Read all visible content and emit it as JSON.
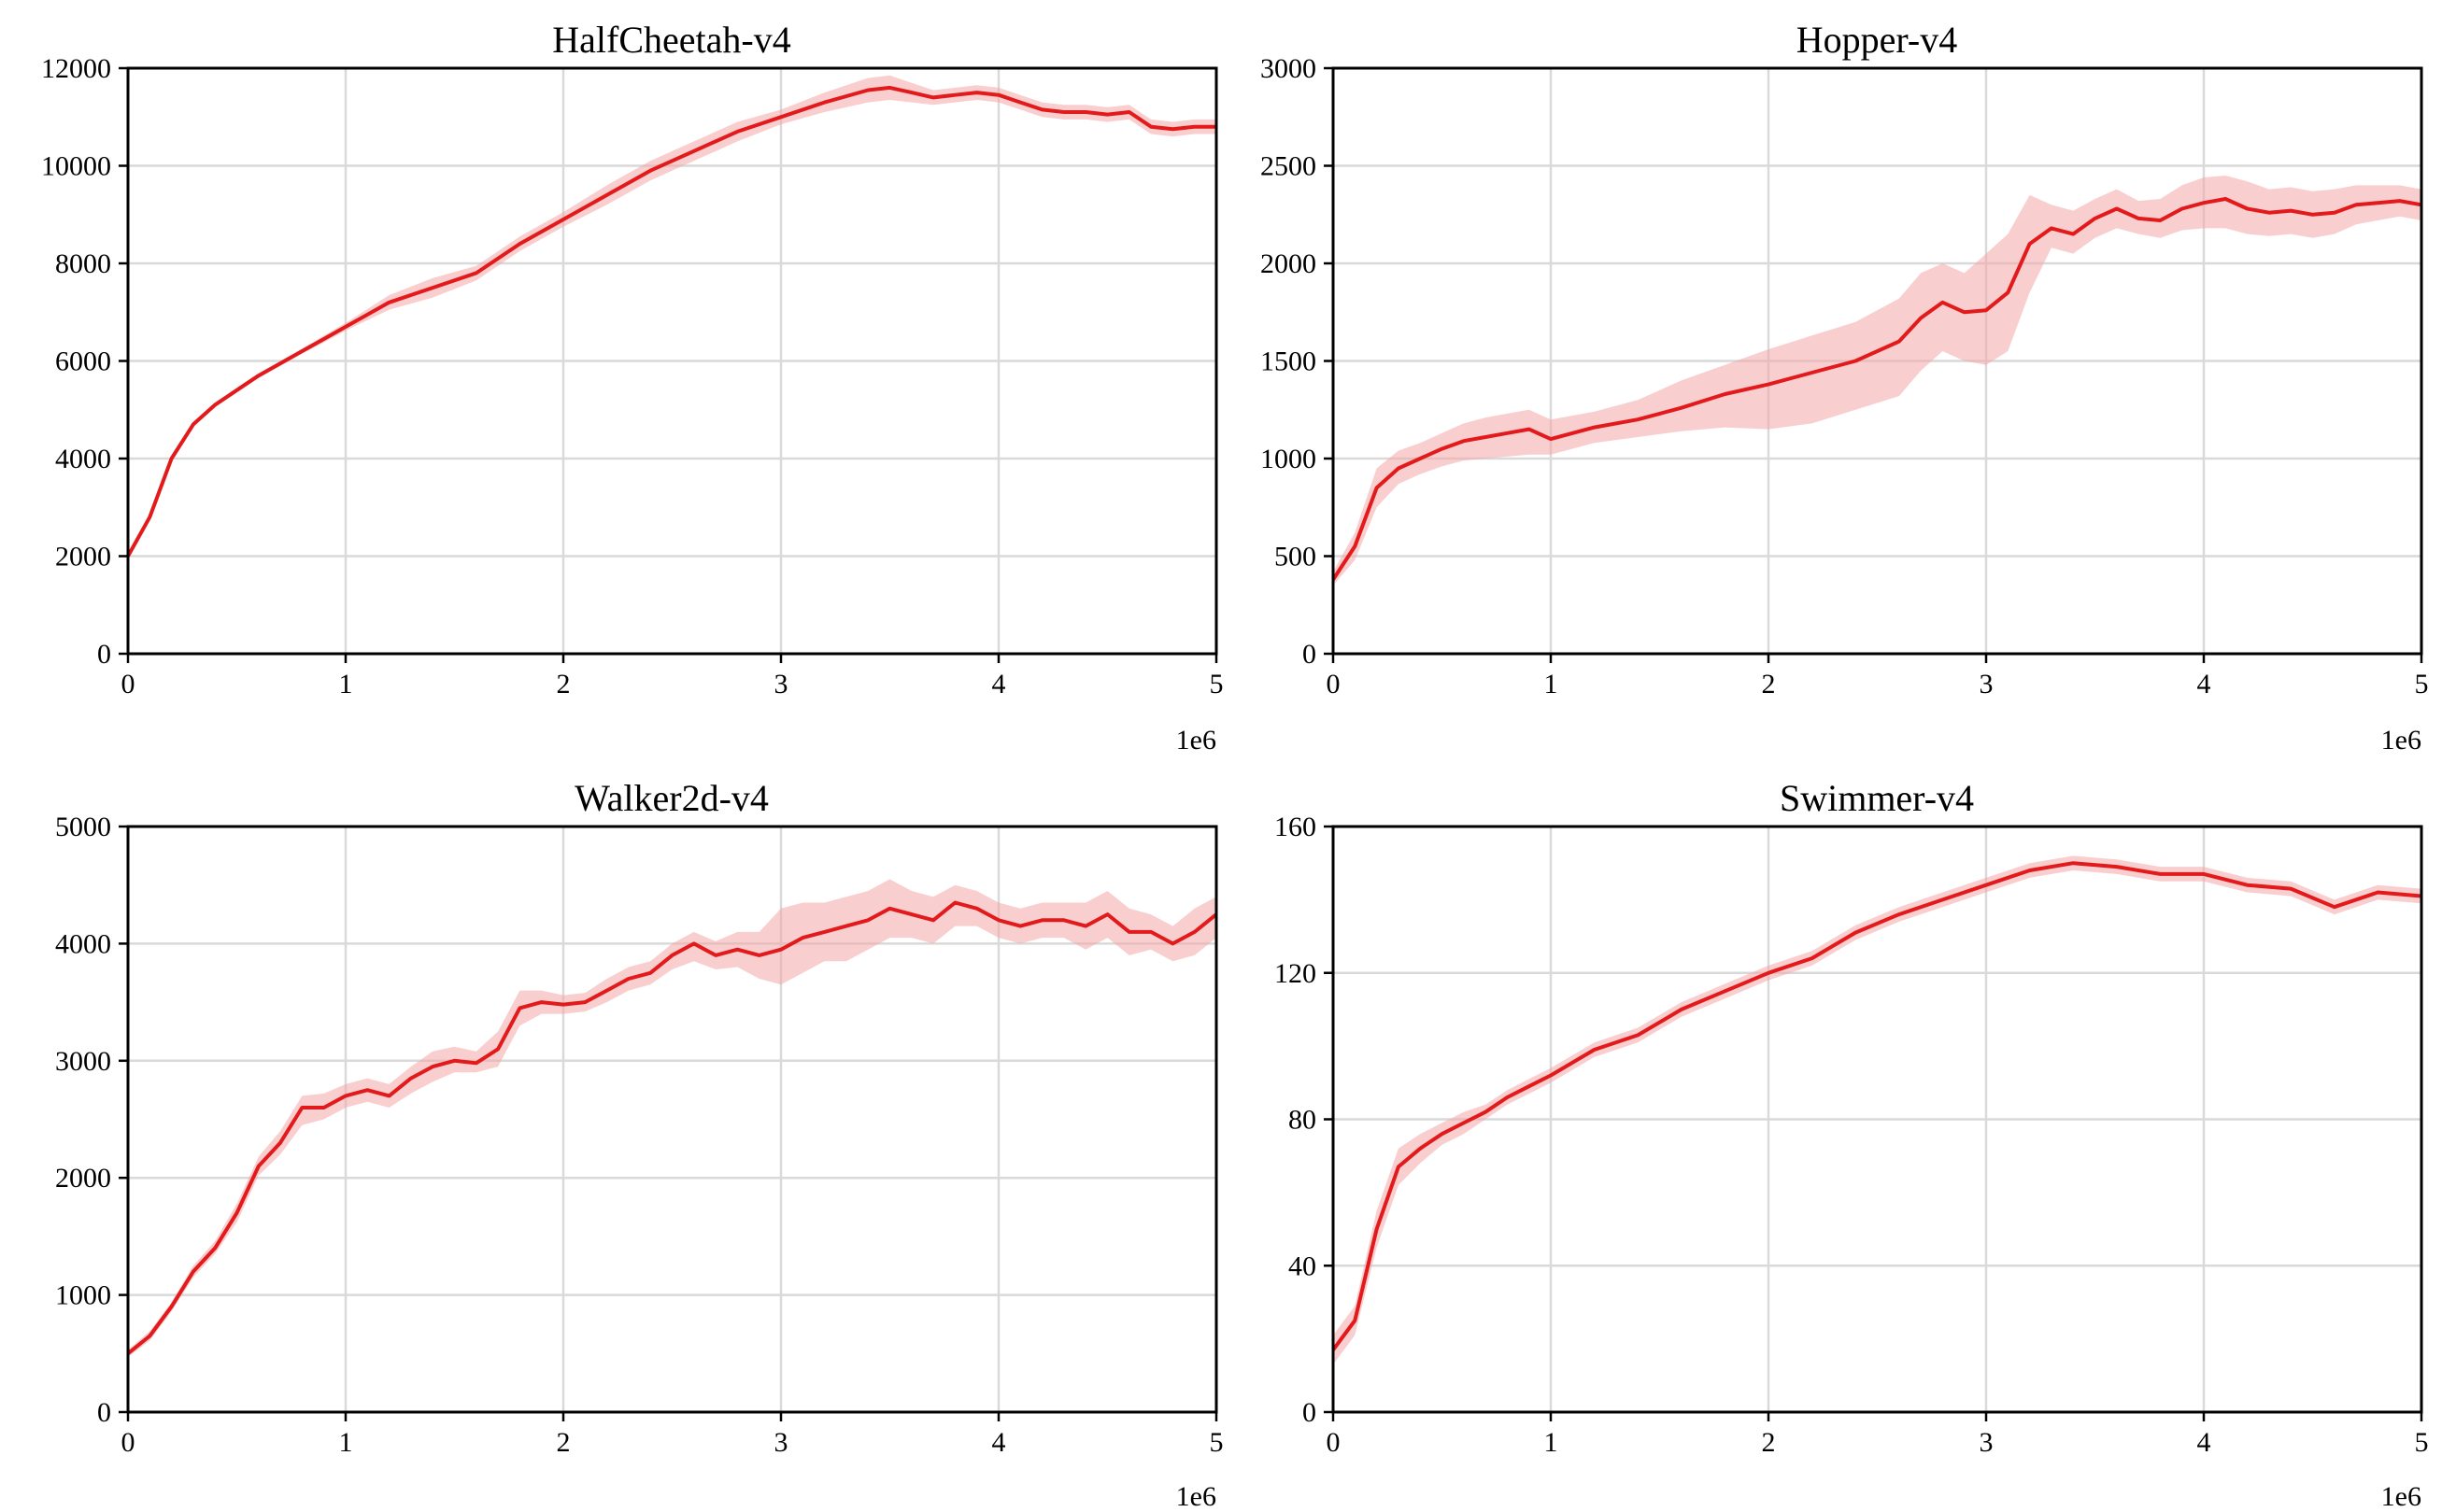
{
  "colors": {
    "line": "#e31a1c",
    "band": "#f4a6a6",
    "grid": "#d9d9d9"
  },
  "chart_data": [
    {
      "type": "line",
      "title": "HalfCheetah-v4",
      "x_exponent_label": "1e6",
      "xlim": [
        0,
        5
      ],
      "ylim": [
        0,
        12000
      ],
      "xticks": [
        0,
        1,
        2,
        3,
        4,
        5
      ],
      "yticks": [
        0,
        2000,
        4000,
        6000,
        8000,
        10000,
        12000
      ],
      "grid": true,
      "series": [
        {
          "x": [
            0,
            0.1,
            0.2,
            0.3,
            0.4,
            0.5,
            0.6,
            0.7,
            0.8,
            0.9,
            1.0,
            1.2,
            1.4,
            1.6,
            1.8,
            2.0,
            2.2,
            2.4,
            2.6,
            2.8,
            3.0,
            3.2,
            3.4,
            3.5,
            3.6,
            3.7,
            3.8,
            3.9,
            4.0,
            4.1,
            4.2,
            4.3,
            4.4,
            4.5,
            4.6,
            4.7,
            4.8,
            4.9,
            5.0
          ],
          "y": [
            2000,
            2800,
            4000,
            4700,
            5100,
            5400,
            5700,
            5950,
            6200,
            6450,
            6700,
            7200,
            7500,
            7800,
            8400,
            8900,
            9400,
            9900,
            10300,
            10700,
            11000,
            11300,
            11550,
            11600,
            11500,
            11400,
            11450,
            11500,
            11450,
            11300,
            11150,
            11100,
            11100,
            11050,
            11100,
            10800,
            10750,
            10800,
            10800
          ],
          "lower": [
            1950,
            2750,
            3950,
            4650,
            5050,
            5350,
            5650,
            5900,
            6150,
            6380,
            6620,
            7050,
            7300,
            7650,
            8250,
            8750,
            9200,
            9700,
            10100,
            10500,
            10850,
            11100,
            11300,
            11350,
            11300,
            11250,
            11300,
            11350,
            11300,
            11150,
            11000,
            10950,
            10950,
            10900,
            10950,
            10650,
            10600,
            10650,
            10650
          ],
          "upper": [
            2050,
            2850,
            4050,
            4750,
            5150,
            5450,
            5750,
            6000,
            6250,
            6520,
            6780,
            7350,
            7700,
            7950,
            8550,
            9050,
            9600,
            10100,
            10500,
            10900,
            11150,
            11500,
            11800,
            11850,
            11700,
            11550,
            11600,
            11650,
            11600,
            11450,
            11300,
            11250,
            11250,
            11200,
            11250,
            10950,
            10900,
            10950,
            10950
          ]
        }
      ]
    },
    {
      "type": "line",
      "title": "Hopper-v4",
      "x_exponent_label": "1e6",
      "xlim": [
        0,
        5
      ],
      "ylim": [
        0,
        3000
      ],
      "xticks": [
        0,
        1,
        2,
        3,
        4,
        5
      ],
      "yticks": [
        0,
        500,
        1000,
        1500,
        2000,
        2500,
        3000
      ],
      "grid": true,
      "series": [
        {
          "x": [
            0,
            0.1,
            0.2,
            0.3,
            0.4,
            0.5,
            0.6,
            0.7,
            0.8,
            0.9,
            1.0,
            1.2,
            1.4,
            1.6,
            1.8,
            2.0,
            2.2,
            2.4,
            2.6,
            2.7,
            2.8,
            2.9,
            3.0,
            3.1,
            3.2,
            3.3,
            3.4,
            3.5,
            3.6,
            3.7,
            3.8,
            3.9,
            4.0,
            4.1,
            4.2,
            4.3,
            4.4,
            4.5,
            4.6,
            4.7,
            4.8,
            4.9,
            5.0
          ],
          "y": [
            380,
            550,
            850,
            950,
            1000,
            1050,
            1090,
            1110,
            1130,
            1150,
            1100,
            1160,
            1200,
            1260,
            1330,
            1380,
            1440,
            1500,
            1600,
            1720,
            1800,
            1750,
            1760,
            1850,
            2100,
            2180,
            2150,
            2230,
            2280,
            2230,
            2220,
            2280,
            2310,
            2330,
            2280,
            2260,
            2270,
            2250,
            2260,
            2300,
            2310,
            2320,
            2300
          ],
          "lower": [
            350,
            480,
            750,
            870,
            920,
            960,
            990,
            1000,
            1010,
            1020,
            1020,
            1080,
            1110,
            1140,
            1160,
            1150,
            1180,
            1250,
            1320,
            1450,
            1550,
            1500,
            1480,
            1550,
            1850,
            2080,
            2050,
            2130,
            2180,
            2150,
            2130,
            2170,
            2180,
            2180,
            2150,
            2140,
            2150,
            2130,
            2150,
            2200,
            2220,
            2240,
            2220
          ],
          "upper": [
            420,
            620,
            950,
            1040,
            1080,
            1130,
            1180,
            1210,
            1230,
            1250,
            1200,
            1240,
            1300,
            1400,
            1480,
            1560,
            1630,
            1700,
            1820,
            1950,
            2000,
            1950,
            2050,
            2150,
            2350,
            2300,
            2270,
            2330,
            2380,
            2320,
            2330,
            2400,
            2440,
            2450,
            2420,
            2380,
            2390,
            2370,
            2380,
            2400,
            2400,
            2400,
            2380
          ]
        }
      ]
    },
    {
      "type": "line",
      "title": "Walker2d-v4",
      "x_exponent_label": "1e6",
      "xlim": [
        0,
        5
      ],
      "ylim": [
        0,
        5000
      ],
      "xticks": [
        0,
        1,
        2,
        3,
        4,
        5
      ],
      "yticks": [
        0,
        1000,
        2000,
        3000,
        4000,
        5000
      ],
      "grid": true,
      "series": [
        {
          "x": [
            0,
            0.1,
            0.2,
            0.3,
            0.4,
            0.5,
            0.6,
            0.7,
            0.8,
            0.9,
            1.0,
            1.1,
            1.2,
            1.3,
            1.4,
            1.5,
            1.6,
            1.7,
            1.8,
            1.9,
            2.0,
            2.1,
            2.2,
            2.3,
            2.4,
            2.5,
            2.6,
            2.7,
            2.8,
            2.9,
            3.0,
            3.1,
            3.2,
            3.3,
            3.4,
            3.5,
            3.6,
            3.7,
            3.8,
            3.9,
            4.0,
            4.1,
            4.2,
            4.3,
            4.4,
            4.5,
            4.6,
            4.7,
            4.8,
            4.9,
            5.0
          ],
          "y": [
            500,
            650,
            900,
            1200,
            1400,
            1700,
            2100,
            2300,
            2600,
            2600,
            2700,
            2750,
            2700,
            2850,
            2950,
            3000,
            2980,
            3100,
            3450,
            3500,
            3480,
            3500,
            3600,
            3700,
            3750,
            3900,
            4000,
            3900,
            3950,
            3900,
            3950,
            4050,
            4100,
            4150,
            4200,
            4300,
            4250,
            4200,
            4350,
            4300,
            4200,
            4150,
            4200,
            4200,
            4150,
            4250,
            4100,
            4100,
            4000,
            4100,
            4250
          ],
          "lower": [
            470,
            610,
            860,
            1150,
            1350,
            1620,
            2020,
            2200,
            2450,
            2500,
            2600,
            2650,
            2600,
            2720,
            2820,
            2900,
            2900,
            2950,
            3300,
            3400,
            3400,
            3420,
            3500,
            3600,
            3650,
            3780,
            3850,
            3780,
            3800,
            3700,
            3650,
            3750,
            3850,
            3850,
            3950,
            4050,
            4050,
            4000,
            4150,
            4150,
            4050,
            4000,
            4050,
            4050,
            3950,
            4050,
            3900,
            3950,
            3850,
            3900,
            4050
          ],
          "upper": [
            530,
            690,
            940,
            1250,
            1460,
            1780,
            2180,
            2400,
            2700,
            2720,
            2800,
            2850,
            2800,
            2950,
            3080,
            3120,
            3080,
            3250,
            3600,
            3600,
            3560,
            3580,
            3700,
            3800,
            3850,
            4000,
            4100,
            4020,
            4100,
            4100,
            4300,
            4350,
            4350,
            4400,
            4450,
            4550,
            4450,
            4400,
            4500,
            4450,
            4350,
            4300,
            4350,
            4350,
            4350,
            4450,
            4300,
            4250,
            4150,
            4300,
            4400
          ]
        }
      ]
    },
    {
      "type": "line",
      "title": "Swimmer-v4",
      "x_exponent_label": "1e6",
      "xlim": [
        0,
        5
      ],
      "ylim": [
        0,
        160
      ],
      "xticks": [
        0,
        1,
        2,
        3,
        4,
        5
      ],
      "yticks": [
        0,
        40,
        80,
        120,
        160
      ],
      "grid": true,
      "series": [
        {
          "x": [
            0,
            0.1,
            0.2,
            0.3,
            0.4,
            0.5,
            0.6,
            0.7,
            0.8,
            0.9,
            1.0,
            1.2,
            1.4,
            1.6,
            1.8,
            2.0,
            2.2,
            2.4,
            2.6,
            2.8,
            3.0,
            3.2,
            3.4,
            3.6,
            3.8,
            4.0,
            4.2,
            4.4,
            4.6,
            4.8,
            5.0
          ],
          "y": [
            17,
            25,
            50,
            67,
            72,
            76,
            79,
            82,
            86,
            89,
            92,
            99,
            103,
            110,
            115,
            120,
            124,
            131,
            136,
            140,
            144,
            148,
            150,
            149,
            147,
            147,
            144,
            143,
            138,
            142,
            141
          ],
          "lower": [
            13,
            21,
            45,
            62,
            68,
            73,
            76,
            80,
            84,
            87,
            90,
            97,
            101,
            108,
            113,
            118,
            122,
            129,
            134,
            138,
            142,
            146,
            148,
            147,
            145,
            145,
            142,
            141,
            136,
            140,
            139
          ],
          "upper": [
            21,
            29,
            55,
            72,
            76,
            79,
            82,
            84,
            88,
            91,
            94,
            101,
            105,
            112,
            117,
            122,
            126,
            133,
            138,
            142,
            146,
            150,
            152,
            151,
            149,
            149,
            146,
            145,
            140,
            144,
            143
          ]
        }
      ]
    }
  ]
}
